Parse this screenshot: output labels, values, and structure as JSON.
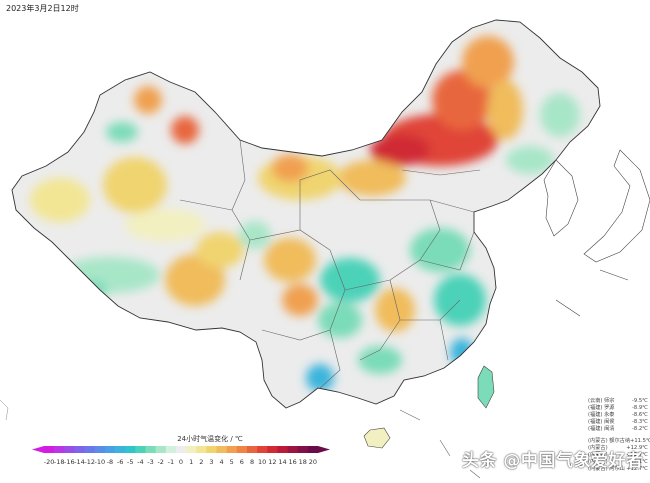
{
  "map": {
    "title": "2023年3月2日12时",
    "legend_title": "24小时气温变化 / ℃",
    "legend_ticks": [
      "-20",
      "-18",
      "-16",
      "-14",
      "-12",
      "-10",
      "-8",
      "-6",
      "-5",
      "-4",
      "-3",
      "-2",
      "-1",
      "0",
      "1",
      "2",
      "3",
      "4",
      "5",
      "6",
      "8",
      "10",
      "12",
      "14",
      "16",
      "18",
      "20"
    ],
    "legend_colors": [
      "#d21ee0",
      "#b936e6",
      "#9a4ee8",
      "#7f63ea",
      "#6a78ea",
      "#5a8ce8",
      "#4aa0e4",
      "#3ab4dc",
      "#32c4cc",
      "#4cd2b8",
      "#7adcb8",
      "#a8e6c8",
      "#d2f0dc",
      "#ededed",
      "#f2f0c0",
      "#f2e694",
      "#f0d470",
      "#f0bc5c",
      "#f0a050",
      "#ee8446",
      "#e8663e",
      "#e04438",
      "#d02a34",
      "#b81c38",
      "#9e1440",
      "#801048",
      "#6a0c4a"
    ],
    "colors": {
      "land": "#ececec",
      "sea": "#ffffff",
      "border": "#555555"
    }
  },
  "stats": {
    "cold": [
      {
        "region": "(云南)",
        "station": "师宗",
        "value": "-9.5℃"
      },
      {
        "region": "(福建)",
        "station": "罗源",
        "value": "-8.9℃"
      },
      {
        "region": "(福建)",
        "station": "永泰",
        "value": "-8.6℃"
      },
      {
        "region": "(福建)",
        "station": "闽侯",
        "value": "-8.3℃"
      },
      {
        "region": "(福建)",
        "station": "闽清",
        "value": "-8.2℃"
      }
    ],
    "warm": [
      {
        "region": "(内蒙古)",
        "station": "额尔古纳",
        "value": "+11.5℃"
      },
      {
        "region": "(内蒙古)",
        "station": "",
        "value": "+12.9℃"
      },
      {
        "region": "(内蒙古)",
        "station": "",
        "value": "+12.7℃"
      },
      {
        "region": "(内蒙古)",
        "station": "",
        "value": "+12.1℃"
      },
      {
        "region": "(内蒙古)",
        "station": "阿尔山",
        "value": "+12.7℃"
      }
    ]
  },
  "watermark": "头条 @中国气象爱好者"
}
